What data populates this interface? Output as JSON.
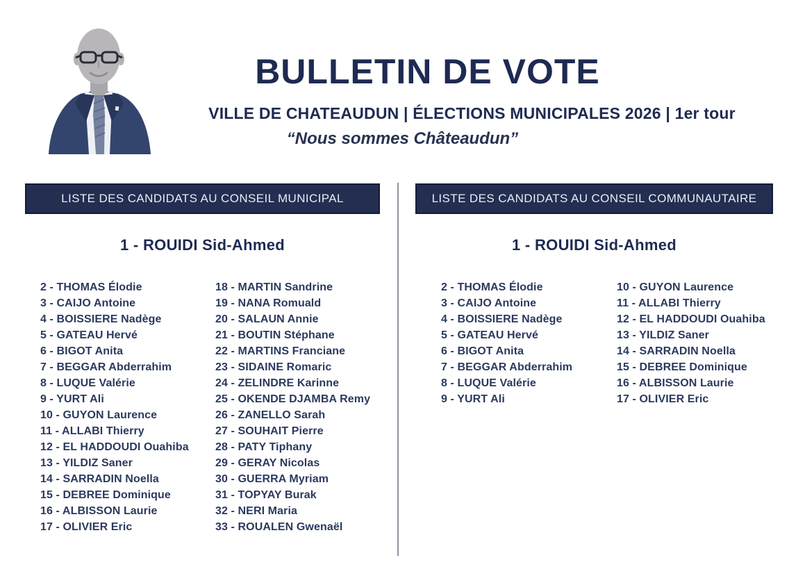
{
  "colors": {
    "navy_box": "#232e51",
    "title_navy": "#1e2a52",
    "text_navy": "#2b3a5e",
    "divider_gray": "#8d93a0"
  },
  "header": {
    "title": "BULLETIN DE VOTE",
    "subtitle": "VILLE DE CHATEAUDUN | ÉLECTIONS MUNICIPALES 2026 | 1er tour",
    "slogan": "“Nous sommes Châteaudun”",
    "photo_icon": "person-portrait-icon"
  },
  "panels": [
    {
      "header": "LISTE DES CANDIDATS AU CONSEIL MUNICIPAL",
      "lead": "1 - ROUIDI Sid-Ahmed",
      "columns": [
        [
          "2 - THOMAS Élodie",
          "3 - CAIJO Antoine",
          "4 - BOISSIERE Nadège",
          "5 - GATEAU Hervé",
          "6 - BIGOT Anita",
          "7 - BEGGAR Abderrahim",
          "8 - LUQUE Valérie",
          "9 - YURT Ali",
          "10 - GUYON Laurence",
          "11 - ALLABI Thierry",
          "12 - EL HADDOUDI Ouahiba",
          "13 - YILDIZ Saner",
          "14 - SARRADIN Noella",
          "15 - DEBREE Dominique",
          "16 - ALBISSON Laurie",
          "17 - OLIVIER Eric"
        ],
        [
          "18 - MARTIN Sandrine",
          "19 - NANA Romuald",
          "20 - SALAUN Annie",
          "21 - BOUTIN Stéphane",
          "22 - MARTINS Franciane",
          "23 - SIDAINE Romaric",
          "24 - ZELINDRE Karinne",
          "25 - OKENDE DJAMBA Remy",
          "26 - ZANELLO Sarah",
          "27 - SOUHAIT Pierre",
          "28 - PATY Tiphany",
          "29 - GERAY Nicolas",
          "30 - GUERRA Myriam",
          "31 - TOPYAY Burak",
          "32 - NERI Maria",
          "33 - ROUALEN Gwenaël"
        ]
      ]
    },
    {
      "header": "LISTE DES CANDIDATS AU CONSEIL COMMUNAUTAIRE",
      "lead": "1 - ROUIDI Sid-Ahmed",
      "columns": [
        [
          "2 - THOMAS Élodie",
          "3 - CAIJO Antoine",
          "4 - BOISSIERE Nadège",
          "5 - GATEAU Hervé",
          "6 - BIGOT Anita",
          "7 - BEGGAR Abderrahim",
          "8 - LUQUE Valérie",
          "9 - YURT Ali"
        ],
        [
          "10 - GUYON Laurence",
          "11 - ALLABI Thierry",
          "12 - EL HADDOUDI Ouahiba",
          "13 - YILDIZ Saner",
          "14 - SARRADIN Noella",
          "15 - DEBREE Dominique",
          "16 - ALBISSON Laurie",
          "17 - OLIVIER Eric"
        ]
      ]
    }
  ]
}
